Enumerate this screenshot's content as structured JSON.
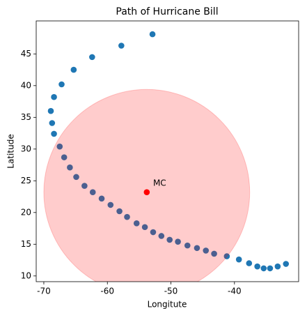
{
  "chart_data": {
    "type": "scatter",
    "title": "Path of Hurricane Bill",
    "xlabel": "Longitute",
    "ylabel": "Latitude",
    "series": [
      {
        "name": "path",
        "color": "#1f77b4",
        "x": [
          -52.9,
          -57.8,
          -62.4,
          -65.3,
          -67.2,
          -68.4,
          -68.9,
          -68.7,
          -68.4,
          -67.5,
          -66.8,
          -65.9,
          -64.9,
          -63.6,
          -62.3,
          -60.9,
          -59.5,
          -58.1,
          -56.9,
          -55.4,
          -54.1,
          -52.8,
          -51.5,
          -50.2,
          -48.9,
          -47.4,
          -45.9,
          -44.5,
          -43.2,
          -41.2,
          -39.3,
          -37.7,
          -36.4,
          -35.4,
          -34.4,
          -33.2,
          -31.9
        ],
        "values": [
          48.1,
          46.3,
          44.5,
          42.5,
          40.2,
          38.2,
          36.0,
          34.1,
          32.4,
          30.4,
          28.7,
          27.1,
          25.6,
          24.2,
          23.2,
          22.2,
          21.2,
          20.2,
          19.3,
          18.3,
          17.7,
          16.9,
          16.3,
          15.7,
          15.4,
          14.8,
          14.4,
          14.0,
          13.5,
          13.1,
          12.6,
          12.0,
          11.5,
          11.2,
          11.2,
          11.5,
          11.9
        ]
      }
    ],
    "point": {
      "label": "MC",
      "x": -53.8,
      "y": 23.2,
      "color": "#ff0000",
      "label_x": -52.8,
      "label_y": 24.6
    },
    "circle": {
      "x": -53.8,
      "y": 23.2,
      "radius": 16.2,
      "color": "#ff0000",
      "alpha": 0.2
    },
    "xlim": [
      -71.2,
      -29.9
    ],
    "xticks": [
      -70,
      -60,
      -50,
      -40
    ],
    "ylim": [
      9.1,
      50.2
    ],
    "yticks": [
      10,
      15,
      20,
      25,
      30,
      35,
      40,
      45
    ]
  }
}
